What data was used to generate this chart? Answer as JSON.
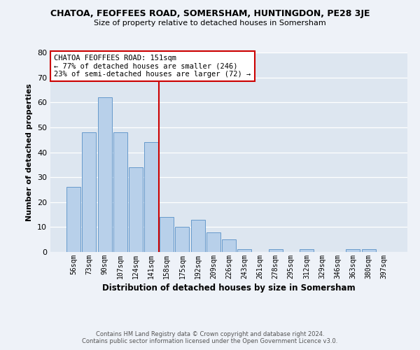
{
  "title_line1": "CHATOA, FEOFFEES ROAD, SOMERSHAM, HUNTINGDON, PE28 3JE",
  "title_line2": "Size of property relative to detached houses in Somersham",
  "xlabel": "Distribution of detached houses by size in Somersham",
  "ylabel": "Number of detached properties",
  "bin_labels": [
    "56sqm",
    "73sqm",
    "90sqm",
    "107sqm",
    "124sqm",
    "141sqm",
    "158sqm",
    "175sqm",
    "192sqm",
    "209sqm",
    "226sqm",
    "243sqm",
    "261sqm",
    "278sqm",
    "295sqm",
    "312sqm",
    "329sqm",
    "346sqm",
    "363sqm",
    "380sqm",
    "397sqm"
  ],
  "bar_values": [
    26,
    48,
    62,
    48,
    34,
    44,
    14,
    10,
    13,
    8,
    5,
    1,
    0,
    1,
    0,
    1,
    0,
    0,
    1,
    1,
    0
  ],
  "bar_color": "#b8d0ea",
  "bar_edge_color": "#6699cc",
  "vline_color": "#cc0000",
  "annotation_title": "CHATOA FEOFFEES ROAD: 151sqm",
  "annotation_line2": "← 77% of detached houses are smaller (246)",
  "annotation_line3": "23% of semi-detached houses are larger (72) →",
  "annotation_box_color": "#ffffff",
  "annotation_box_edge": "#cc0000",
  "ylim": [
    0,
    80
  ],
  "yticks": [
    0,
    10,
    20,
    30,
    40,
    50,
    60,
    70,
    80
  ],
  "footer_line1": "Contains HM Land Registry data © Crown copyright and database right 2024.",
  "footer_line2": "Contains public sector information licensed under the Open Government Licence v3.0.",
  "bg_color": "#eef2f8",
  "plot_bg_color": "#dde6f0"
}
